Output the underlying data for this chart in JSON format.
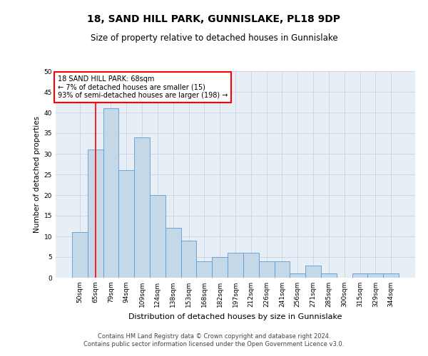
{
  "title": "18, SAND HILL PARK, GUNNISLAKE, PL18 9DP",
  "subtitle": "Size of property relative to detached houses in Gunnislake",
  "xlabel": "Distribution of detached houses by size in Gunnislake",
  "ylabel": "Number of detached properties",
  "footer_line1": "Contains HM Land Registry data © Crown copyright and database right 2024.",
  "footer_line2": "Contains public sector information licensed under the Open Government Licence v3.0.",
  "annotation_title": "18 SAND HILL PARK: 68sqm",
  "annotation_line1": "← 7% of detached houses are smaller (15)",
  "annotation_line2": "93% of semi-detached houses are larger (198) →",
  "bar_labels": [
    "50sqm",
    "65sqm",
    "79sqm",
    "94sqm",
    "109sqm",
    "124sqm",
    "138sqm",
    "153sqm",
    "168sqm",
    "182sqm",
    "197sqm",
    "212sqm",
    "226sqm",
    "241sqm",
    "256sqm",
    "271sqm",
    "285sqm",
    "300sqm",
    "315sqm",
    "329sqm",
    "344sqm"
  ],
  "bar_values": [
    11,
    31,
    41,
    26,
    34,
    20,
    12,
    9,
    4,
    5,
    6,
    6,
    4,
    4,
    1,
    3,
    1,
    0,
    1,
    1,
    1
  ],
  "bar_color": "#c5d8e8",
  "bar_edge_color": "#5b9bd5",
  "red_line_x": 1,
  "ylim": [
    0,
    50
  ],
  "yticks": [
    0,
    5,
    10,
    15,
    20,
    25,
    30,
    35,
    40,
    45,
    50
  ],
  "annotation_box_color": "white",
  "annotation_box_edge": "red",
  "grid_color": "#c8d4e0",
  "bg_color": "#e8eef6",
  "title_fontsize": 10,
  "subtitle_fontsize": 8.5,
  "xlabel_fontsize": 8,
  "ylabel_fontsize": 7.5,
  "tick_fontsize": 6.5,
  "annotation_fontsize": 7,
  "footer_fontsize": 6
}
